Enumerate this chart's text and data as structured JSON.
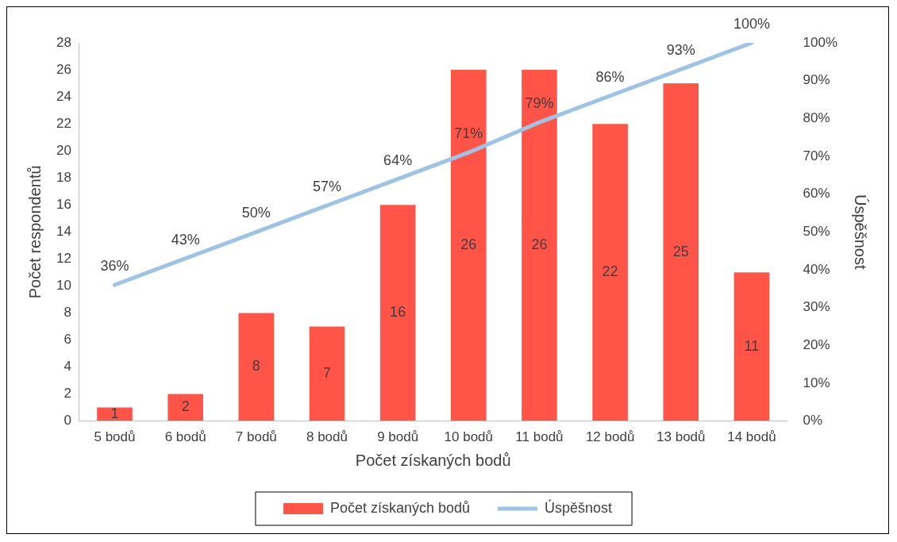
{
  "chart_data": {
    "type": "bar",
    "xlabel": "Počet získaných bodů",
    "ylabel": "Počet respondentů",
    "y2label": "Úspěšnost",
    "categories": [
      "5 bodů",
      "6 bodů",
      "7 bodů",
      "8 bodů",
      "9 bodů",
      "10 bodů",
      "11 bodů",
      "12 bodů",
      "13 bodů",
      "14 bodů"
    ],
    "series": [
      {
        "name": "Počet získaných bodů",
        "color": "#ff5447",
        "values": [
          1,
          2,
          8,
          7,
          16,
          26,
          26,
          22,
          25,
          11
        ],
        "value_labels": [
          "1",
          "2",
          "8",
          "7",
          "16",
          "26",
          "26",
          "22",
          "25",
          "11"
        ]
      },
      {
        "name": "Úspěšnost",
        "type": "line",
        "axis": "y2",
        "color": "#9dc3e6",
        "values": [
          36,
          43,
          50,
          57,
          64,
          71,
          79,
          86,
          93,
          100
        ],
        "value_labels": [
          "36%",
          "43%",
          "50%",
          "57%",
          "64%",
          "71%",
          "79%",
          "86%",
          "93%",
          "100%"
        ]
      }
    ],
    "ylim": [
      0,
      28
    ],
    "yticks": [
      0,
      2,
      4,
      6,
      8,
      10,
      12,
      14,
      16,
      18,
      20,
      22,
      24,
      26,
      28
    ],
    "y2lim": [
      0,
      100
    ],
    "y2ticks": [
      {
        "value": 0,
        "label": "0%"
      },
      {
        "value": 10,
        "label": "10%"
      },
      {
        "value": 20,
        "label": "20%"
      },
      {
        "value": 30,
        "label": "30%"
      },
      {
        "value": 40,
        "label": "40%"
      },
      {
        "value": 50,
        "label": "50%"
      },
      {
        "value": 60,
        "label": "60%"
      },
      {
        "value": 70,
        "label": "70%"
      },
      {
        "value": 80,
        "label": "80%"
      },
      {
        "value": 90,
        "label": "90%"
      },
      {
        "value": 100,
        "label": "100%"
      }
    ],
    "grid": false,
    "legend": "bottom",
    "marker": "none"
  }
}
